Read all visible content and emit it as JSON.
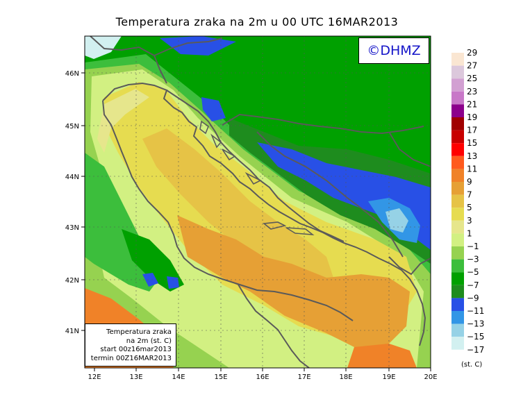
{
  "title": "Temperatura zraka na 2m u 00 UTC 16MAR2013",
  "logo": "©DHMZ",
  "info_box": {
    "line1": "Temperatura zraka",
    "line2": "na 2m (st. C)",
    "line3": "start 00z16mar2013",
    "line4": "termin 00Z16MAR2013"
  },
  "axes": {
    "lon_labels": [
      "12E",
      "13E",
      "14E",
      "15E",
      "16E",
      "17E",
      "18E",
      "19E",
      "20E"
    ],
    "lat_labels": [
      "46N",
      "45N",
      "44N",
      "43N",
      "42N",
      "41N"
    ]
  },
  "legend": {
    "unit": "(st. C)",
    "labels": [
      "29",
      "27",
      "25",
      "23",
      "21",
      "19",
      "17",
      "15",
      "13",
      "11",
      "9",
      "7",
      "5",
      "3",
      "1",
      "−1",
      "−3",
      "−5",
      "−7",
      "−9",
      "−11",
      "−13",
      "−15",
      "−17"
    ],
    "colors": [
      "#fae6d2",
      "#dcc8dc",
      "#d2a0d2",
      "#c878c8",
      "#8c008c",
      "#a00000",
      "#c80000",
      "#ff0000",
      "#ff5a1e",
      "#f08228",
      "#e6a035",
      "#e6c346",
      "#e6dc50",
      "#e6e68c",
      "#d2f082",
      "#96d250",
      "#3cbe3c",
      "#00a000",
      "#1e8c1e",
      "#2850e6",
      "#3296e6",
      "#96d2e6",
      "#d2f0f0",
      "#ffffff"
    ]
  }
}
